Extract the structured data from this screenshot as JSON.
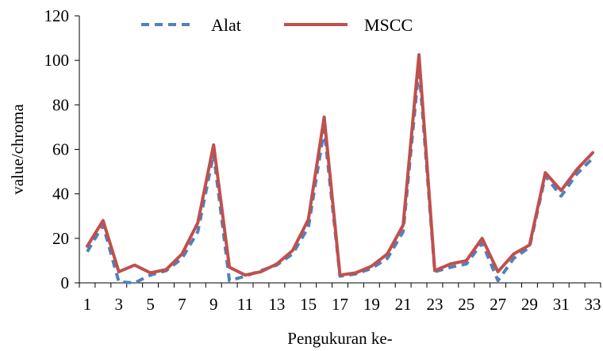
{
  "chart_data": {
    "type": "line",
    "x": [
      1,
      2,
      3,
      4,
      5,
      6,
      7,
      8,
      9,
      10,
      11,
      12,
      13,
      14,
      15,
      16,
      17,
      18,
      19,
      20,
      21,
      22,
      23,
      24,
      25,
      26,
      27,
      28,
      29,
      30,
      31,
      32,
      33
    ],
    "x_tick_labels": [
      "1",
      "3",
      "5",
      "7",
      "9",
      "11",
      "13",
      "15",
      "17",
      "19",
      "21",
      "23",
      "25",
      "27",
      "29",
      "31",
      "33"
    ],
    "xlabel": "Pengukuran ke-",
    "ylabel": "value/chroma",
    "ylim": [
      0,
      120
    ],
    "y_ticks": [
      0,
      20,
      40,
      60,
      80,
      100,
      120
    ],
    "grid": false,
    "legend_position": "top",
    "series": [
      {
        "name": "Alat",
        "style": "dashed",
        "color": "#4F81BD",
        "values": [
          14,
          26,
          0.5,
          0,
          3.5,
          5.5,
          11,
          23,
          58,
          1,
          3,
          5.5,
          8,
          13,
          25,
          69,
          3,
          4,
          6.5,
          11,
          23,
          97,
          5,
          7,
          8.5,
          18,
          1,
          11,
          16,
          48,
          39,
          49,
          56
        ]
      },
      {
        "name": "MSCC",
        "style": "solid",
        "color": "#C0504D",
        "values": [
          16.5,
          28,
          5,
          8,
          4.5,
          6,
          13,
          27,
          62,
          7,
          3.5,
          5,
          8.5,
          14.5,
          28.5,
          74.5,
          3.5,
          4.5,
          7.5,
          13,
          26,
          102.5,
          5.5,
          8.5,
          10,
          20,
          5,
          13,
          17,
          49.5,
          41.5,
          51,
          58.5
        ]
      }
    ]
  }
}
